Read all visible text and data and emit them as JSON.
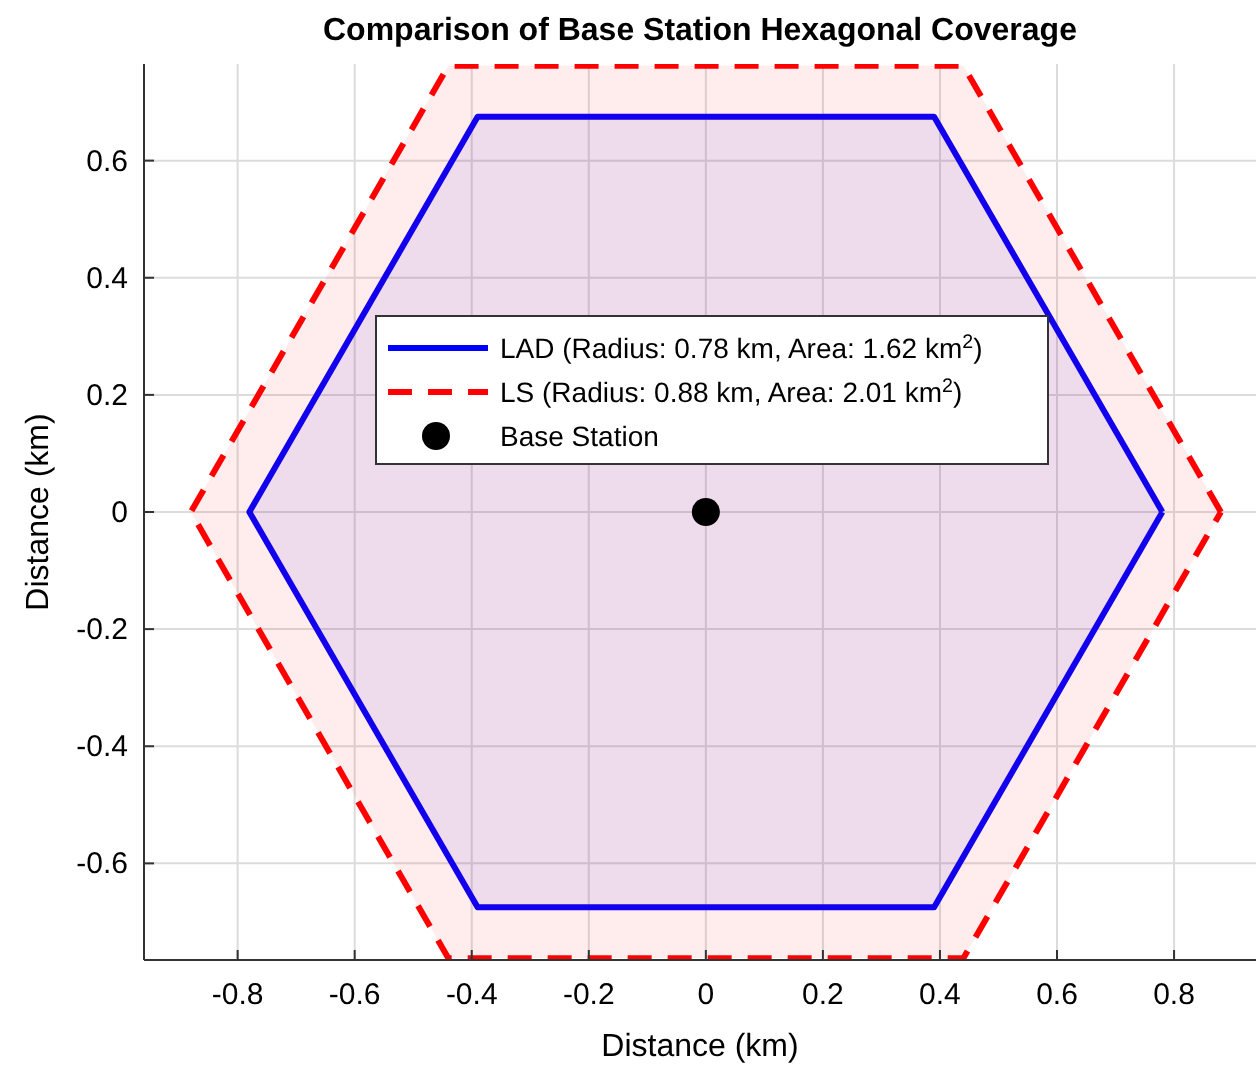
{
  "chart_data": {
    "type": "area",
    "title": "Comparison of Base Station Hexagonal Coverage",
    "xlabel": "Distance (km)",
    "ylabel": "Distance (km)",
    "xlim": [
      -0.96,
      0.94
    ],
    "ylim": [
      -0.765,
      0.765
    ],
    "xticks": [
      -0.8,
      -0.6,
      -0.4,
      -0.2,
      0,
      0.2,
      0.4,
      0.6,
      0.8
    ],
    "yticks": [
      -0.6,
      -0.4,
      -0.2,
      0,
      0.2,
      0.4,
      0.6
    ],
    "grid": true,
    "legend": "top",
    "series": [
      {
        "name": "LAD (Radius: 0.78 km, Area: 1.62 km$^{2}$)",
        "color": "#0000ff",
        "line_style": "solid",
        "x": [
          0.78,
          0.39,
          -0.39,
          -0.78,
          -0.39,
          0.39,
          0.78
        ],
        "values": [
          0,
          0.675,
          0.675,
          0,
          -0.675,
          -0.675,
          0
        ]
      },
      {
        "name": "LS (Radius: 0.88 km, Area: 2.01 km$^{2}$)",
        "color": "#ff0000",
        "line_style": "dashed",
        "x": [
          0.88,
          0.44,
          -0.44,
          -0.88,
          -0.44,
          0.44,
          0.88
        ],
        "values": [
          0,
          0.762,
          0.762,
          0,
          -0.762,
          -0.762,
          0
        ]
      },
      {
        "name": "Base Station",
        "type": "scatter",
        "marker": "circle",
        "color": "#000000",
        "x": [
          0
        ],
        "values": [
          0
        ]
      }
    ]
  }
}
